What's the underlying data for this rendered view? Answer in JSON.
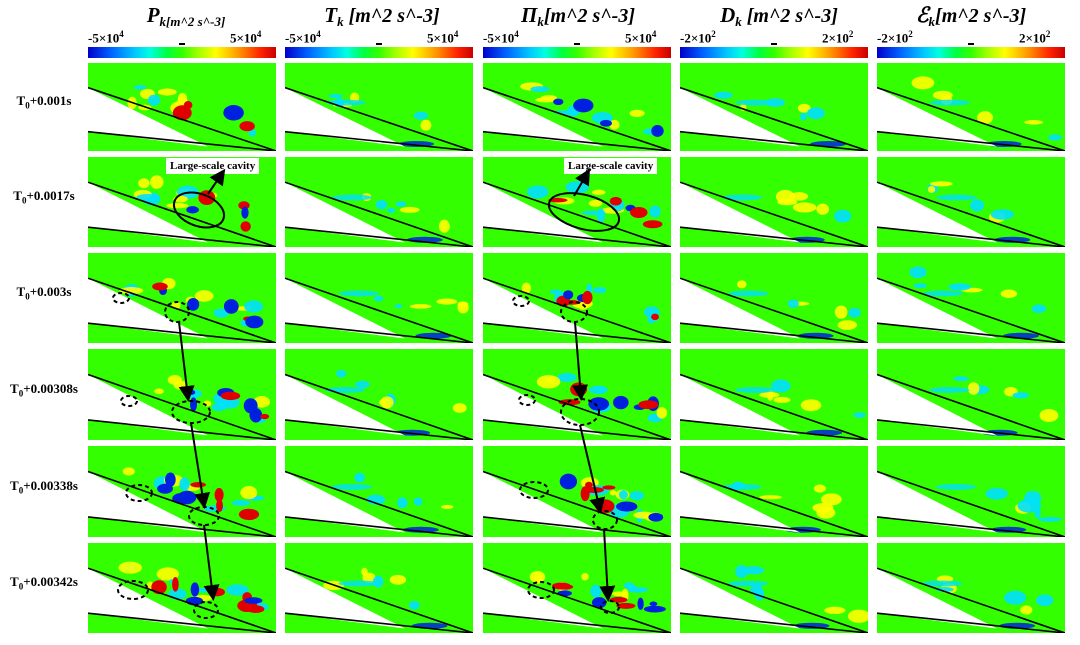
{
  "columns": [
    {
      "symbol": "P",
      "sub": "k",
      "unit": "[m^2 s^-3]",
      "cbar_min": "-5×10",
      "cbar_min_exp": "4",
      "cbar_max": "5×10",
      "cbar_max_exp": "4"
    },
    {
      "symbol": "T",
      "sub": "k",
      "unit": " [m^2 s^-3]",
      "cbar_min": "-5×10",
      "cbar_min_exp": "4",
      "cbar_max": "5×10",
      "cbar_max_exp": "4"
    },
    {
      "symbol": "Π",
      "sub": "k",
      "unit": "[m^2 s^-3]",
      "cbar_min": "-5×10",
      "cbar_min_exp": "4",
      "cbar_max": "5×10",
      "cbar_max_exp": "4"
    },
    {
      "symbol": "D",
      "sub": "k",
      "unit": " [m^2 s^-3]",
      "cbar_min": "-2×10",
      "cbar_min_exp": "2",
      "cbar_max": "2×10",
      "cbar_max_exp": "2"
    },
    {
      "symbol": "ℰ",
      "sub": "k",
      "unit": "[m^2 s^-3]",
      "cbar_min": "-2×10",
      "cbar_min_exp": "2",
      "cbar_max": "2×10",
      "cbar_max_exp": "2"
    }
  ],
  "rows": [
    {
      "prefix": "T",
      "sub": "0",
      "suffix": "+0.001s"
    },
    {
      "prefix": "T",
      "sub": "0",
      "suffix": "+0.0017s"
    },
    {
      "prefix": "T",
      "sub": "0",
      "suffix": "+0.003s"
    },
    {
      "prefix": "T",
      "sub": "0",
      "suffix": "+0.00308s"
    },
    {
      "prefix": "T",
      "sub": "0",
      "suffix": "+0.00338s"
    },
    {
      "prefix": "T",
      "sub": "0",
      "suffix": "+0.00342s"
    }
  ],
  "callouts": {
    "pk_cavity": "Large-scale cavity",
    "pi_cavity": "Large-scale cavity"
  },
  "colors": {
    "background_field": "#33ff00",
    "positive": "#e00000",
    "negative": "#0020e0",
    "weak_negative": "#00e0ff",
    "weak_positive": "#ffff00"
  }
}
